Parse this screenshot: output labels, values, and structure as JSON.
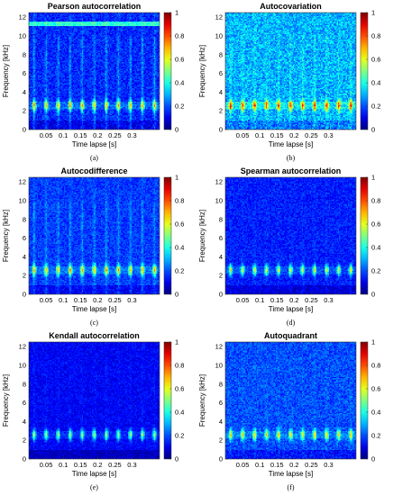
{
  "figure": {
    "panels": [
      {
        "id": "a",
        "title": "Pearson autocorrelation",
        "caption": "(a)",
        "xlabel": "Time lapse [s]",
        "ylabel": "Frequency [kHz]",
        "base_level": 0.16,
        "noise": 0.07,
        "band_boost": 0.12,
        "col_boost": 0.1,
        "top_band": true
      },
      {
        "id": "b",
        "title": "Autocovariation",
        "caption": "(b)",
        "xlabel": "Time lapse [s]",
        "ylabel": "Frequency [kHz]",
        "base_level": 0.3,
        "noise": 0.1,
        "band_boost": 0.14,
        "col_boost": 0.06,
        "top_band": false
      },
      {
        "id": "c",
        "title": "Autocodifference",
        "caption": "(c)",
        "xlabel": "Time lapse [s]",
        "ylabel": "Frequency [kHz]",
        "base_level": 0.18,
        "noise": 0.06,
        "band_boost": 0.12,
        "col_boost": 0.08,
        "top_band": false
      },
      {
        "id": "d",
        "title": "Spearman autocorrelation",
        "caption": "(d)",
        "xlabel": "Time lapse [s]",
        "ylabel": "Frequency [kHz]",
        "base_level": 0.15,
        "noise": 0.06,
        "band_boost": 0.1,
        "col_boost": 0.02,
        "top_band": false
      },
      {
        "id": "e",
        "title": "Kendall autocorrelation",
        "caption": "(e)",
        "xlabel": "Time lapse [s]",
        "ylabel": "Frequency [kHz]",
        "base_level": 0.12,
        "noise": 0.05,
        "band_boost": 0.08,
        "col_boost": 0.02,
        "top_band": false
      },
      {
        "id": "f",
        "title": "Autoquadrant",
        "caption": "(f)",
        "xlabel": "Time lapse [s]",
        "ylabel": "Frequency [kHz]",
        "base_level": 0.2,
        "noise": 0.07,
        "band_boost": 0.1,
        "col_boost": 0.02,
        "top_band": false
      }
    ]
  },
  "chart_data": {
    "type": "heatmap",
    "x_ticks": [
      "0.05",
      "0.1",
      "0.15",
      "0.2",
      "0.25",
      "0.3"
    ],
    "x_tick_values": [
      0.05,
      0.1,
      0.15,
      0.2,
      0.25,
      0.3
    ],
    "xlim": [
      0.0,
      0.38
    ],
    "y_ticks": [
      "0",
      "2",
      "4",
      "6",
      "8",
      "10",
      "12"
    ],
    "y_tick_values": [
      0,
      2,
      4,
      6,
      8,
      10,
      12
    ],
    "ylim": [
      0,
      12.5
    ],
    "colorbar_ticks": [
      "0",
      "0.2",
      "0.4",
      "0.6",
      "0.8",
      "1"
    ],
    "colorbar_tick_values": [
      0,
      0.2,
      0.4,
      0.6,
      0.8,
      1
    ],
    "colorbar_range": [
      0,
      1
    ],
    "colormap": "jet",
    "band_frequency_khz": 2.6,
    "pulse_times_s": [
      0.015,
      0.05,
      0.085,
      0.12,
      0.155,
      0.19,
      0.225,
      0.26,
      0.295,
      0.33,
      0.365
    ]
  }
}
